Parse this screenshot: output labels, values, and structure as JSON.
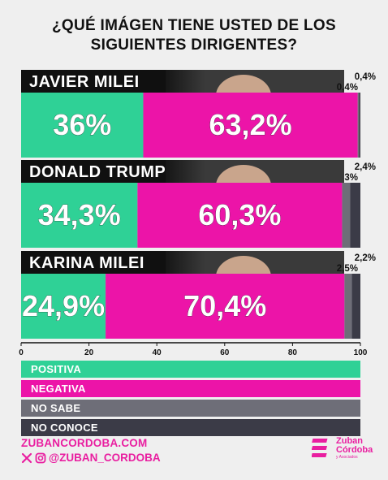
{
  "title": {
    "line1": "¿QUÉ IMÁGEN TIENE USTED DE LOS",
    "line2": "SIGUIENTES DIRIGENTES?"
  },
  "colors": {
    "positiva": "#2fd196",
    "negativa": "#ec14a8",
    "no_sabe": "#6e6e78",
    "no_conoce": "#3b3b47",
    "label_bg": "#101010",
    "brand": "#e91ea0"
  },
  "chart_data": {
    "type": "bar",
    "orientation": "horizontal-stacked",
    "categories": [
      "JAVIER MILEI",
      "DONALD TRUMP",
      "KARINA MILEI"
    ],
    "series": [
      {
        "name": "POSITIVA",
        "values": [
          36,
          34.3,
          24.9
        ],
        "labels": [
          "36%",
          "34,3%",
          "24,9%"
        ]
      },
      {
        "name": "NEGATIVA",
        "values": [
          63.2,
          60.3,
          70.4
        ],
        "labels": [
          "63,2%",
          "60,3%",
          "70,4%"
        ]
      },
      {
        "name": "NO SABE",
        "values": [
          0.4,
          2.4,
          2.2
        ],
        "labels": [
          "0,4%",
          "2,4%",
          "2,2%"
        ]
      },
      {
        "name": "NO CONOCE",
        "values": [
          0.4,
          3,
          2.5
        ],
        "labels": [
          "0,4%",
          "3%",
          "2,5%"
        ]
      }
    ],
    "xlim": [
      0,
      100
    ],
    "xticks": [
      "0",
      "20",
      "40",
      "60",
      "80",
      "100"
    ],
    "legend_position": "bottom"
  },
  "legend": {
    "items": [
      "POSITIVA",
      "NEGATIVA",
      "NO SABE",
      "NO CONOCE"
    ]
  },
  "footer": {
    "website": "ZUBANCORDOBA.COM",
    "handle": "@ZUBAN_CORDOBA",
    "brand_line1": "Zuban",
    "brand_line2": "Córdoba",
    "brand_line3": "y Asociados"
  }
}
